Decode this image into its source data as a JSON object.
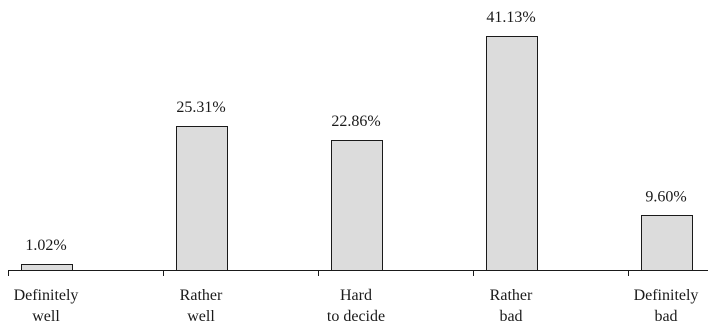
{
  "chart_data": {
    "type": "bar",
    "categories": [
      [
        "Definitely",
        "well"
      ],
      [
        "Rather",
        "well"
      ],
      [
        "Hard",
        "to decide"
      ],
      [
        "Rather",
        "bad"
      ],
      [
        "Definitely",
        "bad"
      ]
    ],
    "values": [
      1.02,
      25.31,
      22.86,
      41.13,
      9.6
    ],
    "value_labels": [
      "1.02%",
      "25.31%",
      "22.86%",
      "41.13%",
      "9.60%"
    ],
    "ylim": [
      0,
      41.13
    ],
    "grid": false,
    "colors": {
      "bar_fill": "#dcdcdc",
      "bar_stroke": "#1a1a1a",
      "text": "#1a1a1a"
    }
  }
}
